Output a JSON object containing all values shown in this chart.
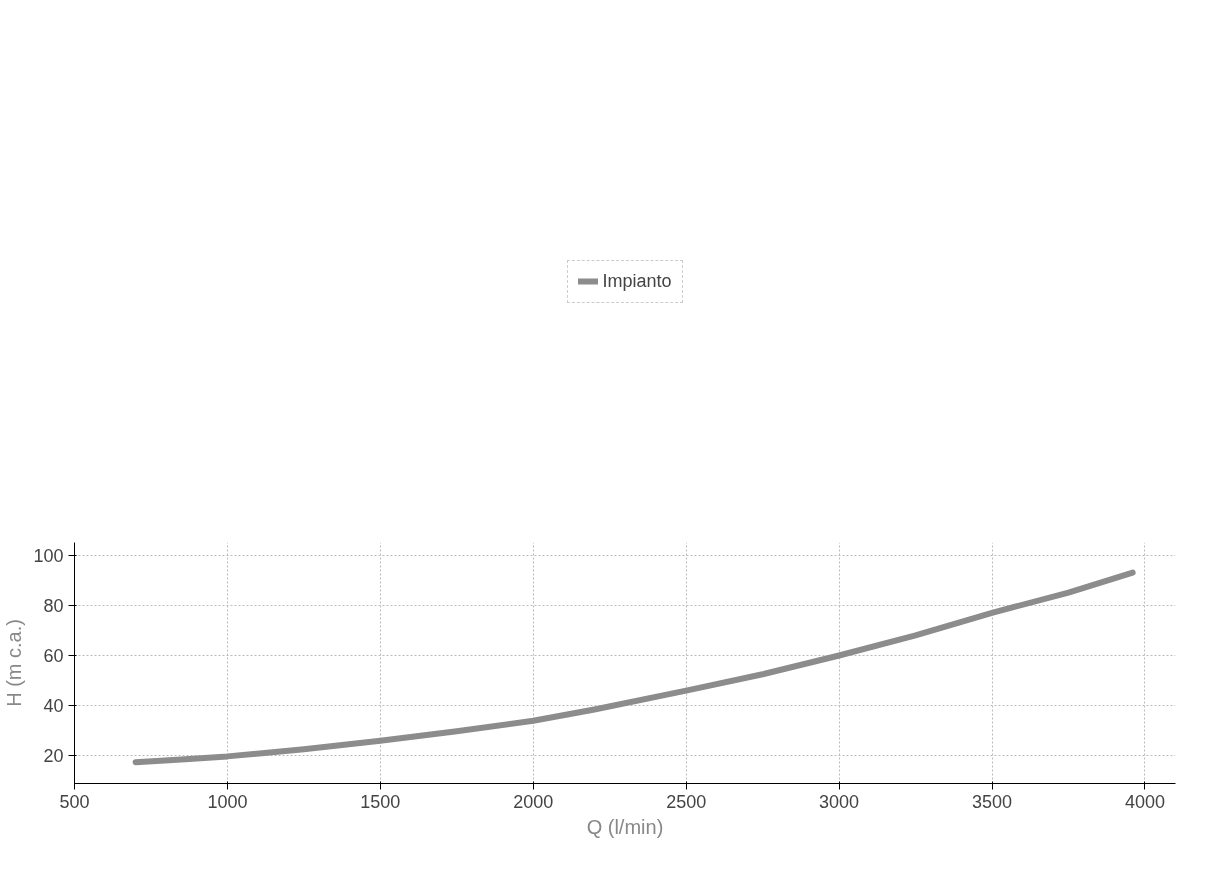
{
  "chart_data": {
    "type": "line",
    "xlabel": "Q (l/min)",
    "ylabel": "H (m c.a.)",
    "series": [
      {
        "name": "Impianto",
        "color": "#8c8c8c",
        "x": [
          700,
          850,
          1000,
          1250,
          1500,
          1750,
          2000,
          2200,
          2500,
          2750,
          3000,
          3250,
          3500,
          3750,
          3960
        ],
        "values": [
          17.5,
          18.6,
          19.8,
          22.6,
          26,
          29.8,
          34,
          38.5,
          46,
          52.5,
          60,
          68,
          77,
          85,
          93
        ]
      }
    ],
    "xlim": [
      500,
      4100
    ],
    "ylim": [
      9,
      105
    ],
    "xticks": [
      500,
      1000,
      1500,
      2000,
      2500,
      3000,
      3500,
      4000
    ],
    "yticks": [
      20,
      40,
      60,
      80,
      100
    ],
    "grid": true,
    "legend": "top",
    "marker": "none",
    "line_style": "solid"
  }
}
